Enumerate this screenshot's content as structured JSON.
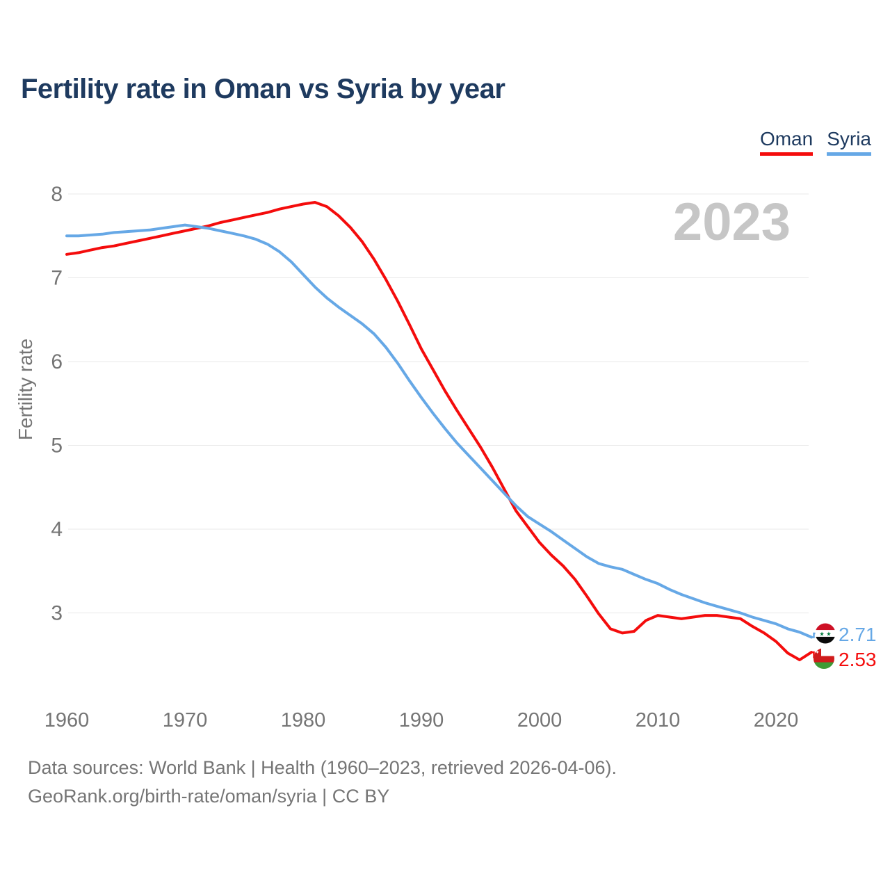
{
  "title": "Fertility rate in Oman vs Syria by year",
  "watermark": "2023",
  "legend": {
    "items": [
      {
        "label": "Oman",
        "color": "#f40c0c"
      },
      {
        "label": "Syria",
        "color": "#66a8e6"
      }
    ]
  },
  "chart_data": {
    "type": "line",
    "title": "Fertility rate in Oman vs Syria by year",
    "xlabel": "",
    "ylabel": "Fertility rate",
    "ylim": [
      3,
      8
    ],
    "grid": "horizontal",
    "legend_position": "top-right",
    "x_ticks": [
      1960,
      1970,
      1980,
      1990,
      2000,
      2010,
      2020
    ],
    "y_ticks": [
      3,
      4,
      5,
      6,
      7,
      8
    ],
    "x": [
      1960,
      1961,
      1962,
      1963,
      1964,
      1965,
      1966,
      1967,
      1968,
      1969,
      1970,
      1971,
      1972,
      1973,
      1974,
      1975,
      1976,
      1977,
      1978,
      1979,
      1980,
      1981,
      1982,
      1983,
      1984,
      1985,
      1986,
      1987,
      1988,
      1989,
      1990,
      1991,
      1992,
      1993,
      1994,
      1995,
      1996,
      1997,
      1998,
      1999,
      2000,
      2001,
      2002,
      2003,
      2004,
      2005,
      2006,
      2007,
      2008,
      2009,
      2010,
      2011,
      2012,
      2013,
      2014,
      2015,
      2016,
      2017,
      2018,
      2019,
      2020,
      2021,
      2022,
      2023
    ],
    "series": [
      {
        "name": "Oman",
        "color": "#f40c0c",
        "values": [
          7.28,
          7.3,
          7.33,
          7.36,
          7.38,
          7.41,
          7.44,
          7.47,
          7.5,
          7.53,
          7.56,
          7.59,
          7.62,
          7.66,
          7.69,
          7.72,
          7.75,
          7.78,
          7.82,
          7.85,
          7.88,
          7.9,
          7.85,
          7.74,
          7.6,
          7.43,
          7.22,
          6.98,
          6.72,
          6.44,
          6.15,
          5.9,
          5.65,
          5.42,
          5.2,
          4.98,
          4.74,
          4.48,
          4.22,
          4.03,
          3.84,
          3.69,
          3.56,
          3.4,
          3.2,
          2.99,
          2.81,
          2.76,
          2.78,
          2.91,
          2.97,
          2.95,
          2.93,
          2.95,
          2.97,
          2.97,
          2.95,
          2.93,
          2.84,
          2.76,
          2.66,
          2.52,
          2.44,
          2.53
        ]
      },
      {
        "name": "Syria",
        "color": "#66a8e6",
        "values": [
          7.5,
          7.5,
          7.51,
          7.52,
          7.54,
          7.55,
          7.56,
          7.57,
          7.59,
          7.61,
          7.63,
          7.61,
          7.59,
          7.56,
          7.53,
          7.5,
          7.46,
          7.4,
          7.31,
          7.19,
          7.04,
          6.89,
          6.76,
          6.65,
          6.55,
          6.45,
          6.33,
          6.17,
          5.98,
          5.77,
          5.57,
          5.38,
          5.2,
          5.03,
          4.88,
          4.73,
          4.58,
          4.43,
          4.28,
          4.15,
          4.06,
          3.97,
          3.87,
          3.77,
          3.67,
          3.59,
          3.55,
          3.52,
          3.46,
          3.4,
          3.35,
          3.28,
          3.22,
          3.17,
          3.12,
          3.08,
          3.04,
          3.0,
          2.95,
          2.91,
          2.87,
          2.81,
          2.77,
          2.71
        ]
      }
    ]
  },
  "end_labels": {
    "syria": {
      "value": "2.71",
      "color": "#66a8e6",
      "flag_icon": "syria-flag-icon"
    },
    "oman": {
      "value": "2.53",
      "color": "#f40c0c",
      "flag_icon": "oman-flag-icon"
    }
  },
  "footer": {
    "line1": "Data sources: World Bank | Health (1960–2023, retrieved 2026-04-06).",
    "line2": "GeoRank.org/birth-rate/oman/syria | CC BY"
  }
}
